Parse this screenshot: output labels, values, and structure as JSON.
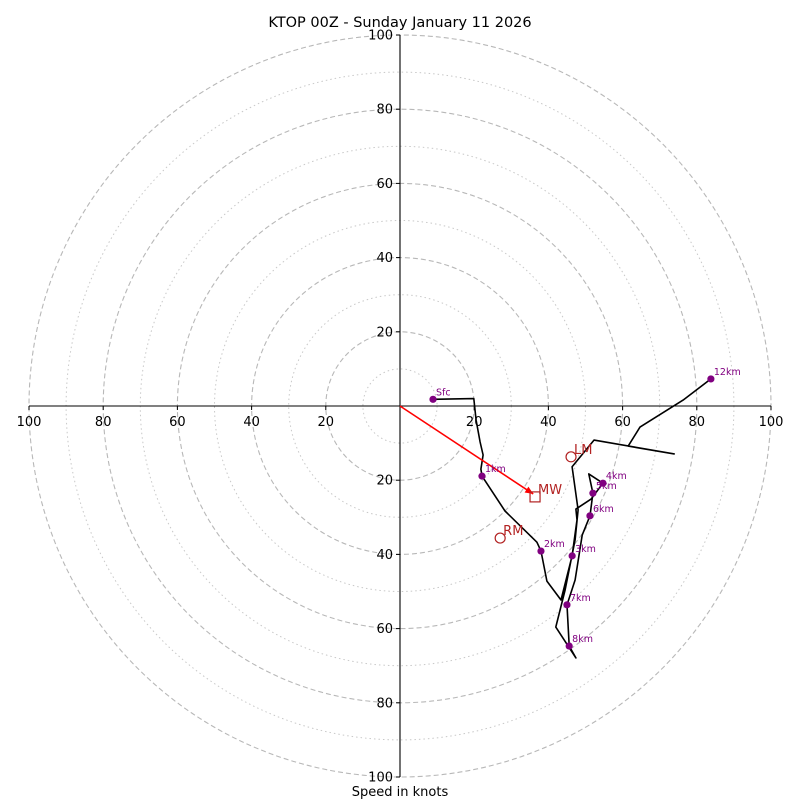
{
  "chart_data": {
    "type": "scatter",
    "subtype": "hodograph",
    "title": "KTOP 00Z - Sunday January 11 2026",
    "xlabel": "Speed in knots",
    "ylabel": "",
    "units": "knots",
    "xlim": [
      -100,
      100
    ],
    "ylim": [
      -100,
      100
    ],
    "ring_major_values": [
      20,
      40,
      60,
      80,
      100
    ],
    "ring_minor_values": [
      10,
      30,
      50,
      70,
      90
    ],
    "x_tick_labels": [
      "100",
      "80",
      "60",
      "40",
      "20",
      "20",
      "40",
      "60",
      "80",
      "100"
    ],
    "x_tick_values": [
      -100,
      -80,
      -60,
      -40,
      -20,
      20,
      40,
      60,
      80,
      100
    ],
    "y_tick_labels": [
      "100",
      "80",
      "60",
      "40",
      "20",
      "20",
      "40",
      "60",
      "80",
      "100"
    ],
    "y_tick_values": [
      100,
      80,
      60,
      40,
      20,
      -20,
      -40,
      -60,
      -80,
      -100
    ],
    "grid": true,
    "hodograph_trace": {
      "name": "wind profile",
      "color": "#000000",
      "u": [
        8.9,
        19.9,
        20.5,
        21.6,
        22.4,
        21.8,
        22.1,
        28.3,
        36.9,
        38.0,
        39.6,
        43.4,
        46.4,
        47.7,
        47.4,
        51.5,
        54.7,
        50.9,
        52.0,
        51.2,
        49.1,
        47.2,
        45.0,
        45.6,
        47.4,
        42.0,
        44.5,
        47.2,
        48.0,
        46.4,
        52.3,
        73.9,
        61.5,
        64.7,
        76.3,
        83.8
      ],
      "v": [
        1.8,
        2.0,
        -3.8,
        -9.7,
        -13.2,
        -17.0,
        -18.9,
        -28.3,
        -36.7,
        -39.1,
        -47.2,
        -52.3,
        -40.4,
        -30.7,
        -27.8,
        -25.1,
        -20.8,
        -18.3,
        -23.5,
        -29.6,
        -34.8,
        -46.9,
        -53.6,
        -64.7,
        -67.9,
        -59.6,
        -49.6,
        -36.1,
        -28.0,
        -16.4,
        -9.2,
        -12.9,
        -10.8,
        -5.7,
        1.6,
        7.3
      ]
    },
    "height_markers": {
      "color": "#800080",
      "points": [
        {
          "label": "Sfc",
          "u": 8.9,
          "v": 1.8
        },
        {
          "label": "1km",
          "u": 22.1,
          "v": -18.9
        },
        {
          "label": "2km",
          "u": 38.0,
          "v": -39.1
        },
        {
          "label": "3km",
          "u": 46.4,
          "v": -40.4
        },
        {
          "label": "4km",
          "u": 54.7,
          "v": -20.8
        },
        {
          "label": "5km",
          "u": 52.0,
          "v": -23.5
        },
        {
          "label": "6km",
          "u": 51.2,
          "v": -29.6
        },
        {
          "label": "7km",
          "u": 45.0,
          "v": -53.6
        },
        {
          "label": "8km",
          "u": 45.6,
          "v": -64.7
        },
        {
          "label": "12km",
          "u": 83.8,
          "v": 7.3
        }
      ]
    },
    "storm_motion": {
      "color": "#b22222",
      "points": [
        {
          "label": "LM",
          "marker": "circle",
          "u": 46.1,
          "v": -13.7
        },
        {
          "label": "MW",
          "marker": "square",
          "u": 36.4,
          "v": -24.5
        },
        {
          "label": "RM",
          "marker": "circle",
          "u": 27.0,
          "v": -35.6
        }
      ],
      "mean_wind_arrow": {
        "color": "#ff0000",
        "from_u": 0,
        "from_v": 0,
        "to_u": 35.9,
        "to_v": -23.7
      }
    }
  }
}
